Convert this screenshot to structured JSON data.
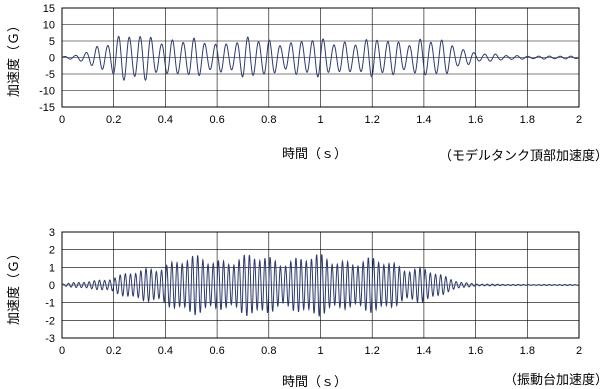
{
  "chart_data": [
    {
      "type": "line",
      "xlabel": "時間（ｓ）",
      "ylabel": "加速度（Ｇ）",
      "annotation": "（モデルタンク頂部加速度）",
      "xlim": [
        0,
        2
      ],
      "ylim": [
        -15,
        15
      ],
      "xticks": [
        0,
        0.2,
        0.4,
        0.6,
        0.8,
        1,
        1.2,
        1.4,
        1.6,
        1.8,
        2
      ],
      "xtick_labels": [
        "0",
        "0.2",
        "0.4",
        "0.6",
        "0.8",
        "1",
        "1.2",
        "1.4",
        "1.6",
        "1.8",
        "2"
      ],
      "yticks": [
        15,
        10,
        5,
        0,
        -5,
        -10,
        -15
      ],
      "ytick_labels": [
        "15",
        "10",
        "5",
        "0",
        "-5",
        "-10",
        "-15"
      ],
      "grid": true,
      "line_color": "#2e3a6e",
      "series": [
        {
          "frequency_hz": 24,
          "envelope": [
            [
              0,
              0.3
            ],
            [
              0.05,
              0.6
            ],
            [
              0.1,
              2.5
            ],
            [
              0.15,
              5
            ],
            [
              0.2,
              7
            ],
            [
              0.3,
              7.5
            ],
            [
              0.35,
              8
            ],
            [
              0.4,
              6.5
            ],
            [
              0.5,
              6
            ],
            [
              0.6,
              5.5
            ],
            [
              0.7,
              6.5
            ],
            [
              0.8,
              6
            ],
            [
              0.9,
              6
            ],
            [
              1.0,
              6
            ],
            [
              1.1,
              6
            ],
            [
              1.2,
              6
            ],
            [
              1.3,
              6
            ],
            [
              1.4,
              6.5
            ],
            [
              1.5,
              5
            ],
            [
              1.55,
              3.5
            ],
            [
              1.6,
              1.8
            ],
            [
              1.7,
              0.8
            ],
            [
              1.8,
              0.6
            ],
            [
              2.0,
              0.4
            ]
          ]
        }
      ]
    },
    {
      "type": "line",
      "xlabel": "時間（ｓ）",
      "ylabel": "加速度（Ｇ）",
      "annotation": "（振動台加速度）",
      "xlim": [
        0,
        2
      ],
      "ylim": [
        -3,
        3
      ],
      "xticks": [
        0,
        0.2,
        0.4,
        0.6,
        0.8,
        1,
        1.2,
        1.4,
        1.6,
        1.8,
        2
      ],
      "xtick_labels": [
        "0",
        "0.2",
        "0.4",
        "0.6",
        "0.8",
        "1",
        "1.2",
        "1.4",
        "1.6",
        "1.8",
        "2"
      ],
      "yticks": [
        3,
        2,
        1,
        0,
        -1,
        -2,
        -3
      ],
      "ytick_labels": [
        "3",
        "2",
        "1",
        "0",
        "-1",
        "-2",
        "-3"
      ],
      "grid": true,
      "line_color": "#2e3a6e",
      "series": [
        {
          "frequency_hz": 50,
          "envelope": [
            [
              0,
              0.05
            ],
            [
              0.05,
              0.15
            ],
            [
              0.1,
              0.25
            ],
            [
              0.2,
              0.5
            ],
            [
              0.3,
              0.9
            ],
            [
              0.35,
              1.2
            ],
            [
              0.4,
              1.5
            ],
            [
              0.5,
              1.7
            ],
            [
              0.6,
              1.8
            ],
            [
              0.7,
              1.8
            ],
            [
              0.8,
              1.8
            ],
            [
              0.9,
              1.8
            ],
            [
              1.0,
              1.8
            ],
            [
              1.1,
              1.75
            ],
            [
              1.2,
              1.6
            ],
            [
              1.3,
              1.4
            ],
            [
              1.4,
              1.1
            ],
            [
              1.45,
              0.7
            ],
            [
              1.5,
              0.4
            ],
            [
              1.55,
              0.2
            ],
            [
              1.6,
              0.08
            ],
            [
              1.7,
              0.04
            ],
            [
              2.0,
              0.03
            ]
          ]
        }
      ]
    }
  ]
}
